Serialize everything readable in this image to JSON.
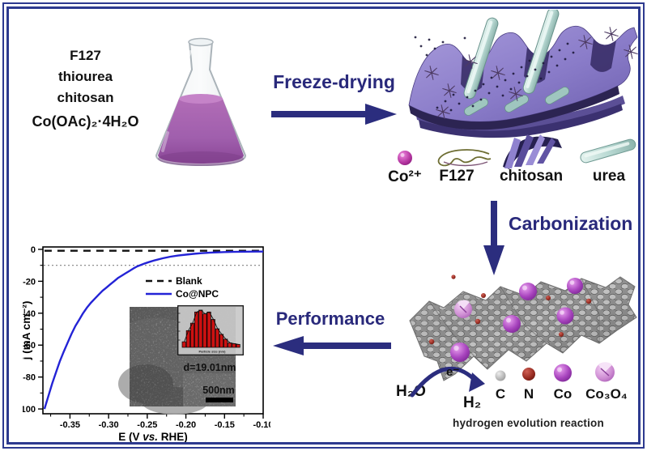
{
  "colors": {
    "accent_navy": "#2b2d7e",
    "frame_navy": "#2d3a8f",
    "curve_blue": "#2323d6",
    "bar_red": "#cc1111",
    "liquid_purple": "#a05fad"
  },
  "reagents": {
    "lines": [
      "F127",
      "thiourea",
      "chitosan",
      "Co(OAc)₂·4H₂O"
    ]
  },
  "process": {
    "freeze_drying_label": "Freeze-drying",
    "carbonization_label": "Carbonization",
    "performance_label": "Performance"
  },
  "intermediate_legend": {
    "co_ion": "Co²⁺",
    "f127": "F127",
    "chitosan": "chitosan",
    "urea": "urea"
  },
  "her": {
    "h2o": "H₂O",
    "electron": "e⁻",
    "h2": "H₂",
    "caption": "hydrogen evolution reaction",
    "atoms": {
      "c": "C",
      "n": "N",
      "co": "Co",
      "co3o4": "Co₃O₄"
    }
  },
  "inset": {
    "d_label": "d=19.01nm",
    "scale_label": "500nm"
  },
  "chart_data": [
    {
      "id": "lsv",
      "type": "line",
      "title": "",
      "xlabel": "E (V vs. RHE)",
      "xlabel_parts": [
        "E (V ",
        "vs.",
        " RHE)"
      ],
      "ylabel": "j (mA cm⁻²)",
      "xlim": [
        -0.385,
        -0.1
      ],
      "ylim": [
        -103,
        1.5
      ],
      "x_ticks": [
        -0.35,
        -0.3,
        -0.25,
        -0.2,
        -0.15,
        -0.1
      ],
      "x_tick_labels": [
        "-0.35",
        "-0.30",
        "-0.25",
        "-0.20",
        "-0.15",
        "-0.10"
      ],
      "x_minor_ticks": [
        -0.375,
        -0.325,
        -0.275,
        -0.225,
        -0.175,
        -0.125
      ],
      "y_ticks": [
        0,
        -20,
        -40,
        -60,
        -80,
        -100
      ],
      "y_tick_labels": [
        "0",
        "-20",
        "-40",
        "-60",
        "-80",
        "-100"
      ],
      "y_minor_ticks": [
        -10,
        -30,
        -50,
        -70,
        -90
      ],
      "grid": false,
      "reference_line": {
        "y": -10,
        "style": "dotted",
        "color": "#808080"
      },
      "legend": {
        "position": "inside-center",
        "entries": [
          {
            "name": "Blank",
            "style": "dashed",
            "color": "#111111"
          },
          {
            "name": "Co@NPC",
            "style": "solid",
            "color": "#2323d6"
          }
        ]
      },
      "series": [
        {
          "name": "Blank",
          "style": "dashed",
          "color": "#111111",
          "points": [
            [
              -0.383,
              -0.9
            ],
            [
              -0.1,
              -0.9
            ]
          ]
        },
        {
          "name": "Co@NPC",
          "style": "solid",
          "color": "#2323d6",
          "points": [
            [
              -0.383,
              -100
            ],
            [
              -0.378,
              -92
            ],
            [
              -0.373,
              -84
            ],
            [
              -0.368,
              -77
            ],
            [
              -0.363,
              -70
            ],
            [
              -0.358,
              -64
            ],
            [
              -0.353,
              -58.5
            ],
            [
              -0.348,
              -53
            ],
            [
              -0.343,
              -48
            ],
            [
              -0.338,
              -44
            ],
            [
              -0.333,
              -40
            ],
            [
              -0.328,
              -36.5
            ],
            [
              -0.323,
              -33.5
            ],
            [
              -0.318,
              -31
            ],
            [
              -0.313,
              -28.5
            ],
            [
              -0.308,
              -26
            ],
            [
              -0.303,
              -24
            ],
            [
              -0.298,
              -22
            ],
            [
              -0.293,
              -20
            ],
            [
              -0.288,
              -18
            ],
            [
              -0.283,
              -16.5
            ],
            [
              -0.278,
              -15
            ],
            [
              -0.273,
              -13.5
            ],
            [
              -0.268,
              -12
            ],
            [
              -0.263,
              -10.7
            ],
            [
              -0.258,
              -9.7
            ],
            [
              -0.253,
              -8.8
            ],
            [
              -0.248,
              -8
            ],
            [
              -0.24,
              -6.8
            ],
            [
              -0.23,
              -5.6
            ],
            [
              -0.22,
              -4.6
            ],
            [
              -0.21,
              -3.9
            ],
            [
              -0.2,
              -3.3
            ],
            [
              -0.19,
              -2.8
            ],
            [
              -0.18,
              -2.4
            ],
            [
              -0.17,
              -2.1
            ],
            [
              -0.16,
              -1.9
            ],
            [
              -0.15,
              -1.7
            ],
            [
              -0.14,
              -1.6
            ],
            [
              -0.13,
              -1.5
            ],
            [
              -0.12,
              -1.45
            ],
            [
              -0.11,
              -1.4
            ],
            [
              -0.1,
              -1.4
            ]
          ]
        }
      ]
    },
    {
      "id": "particle-size-histogram",
      "type": "bar",
      "xlabel": "Particle size (nm)",
      "annotation": "d=19.01nm",
      "bar_color": "#cc1111",
      "values": [
        15,
        45,
        65,
        95,
        100,
        90,
        95,
        75,
        50,
        35,
        22,
        12,
        10,
        8
      ]
    }
  ]
}
